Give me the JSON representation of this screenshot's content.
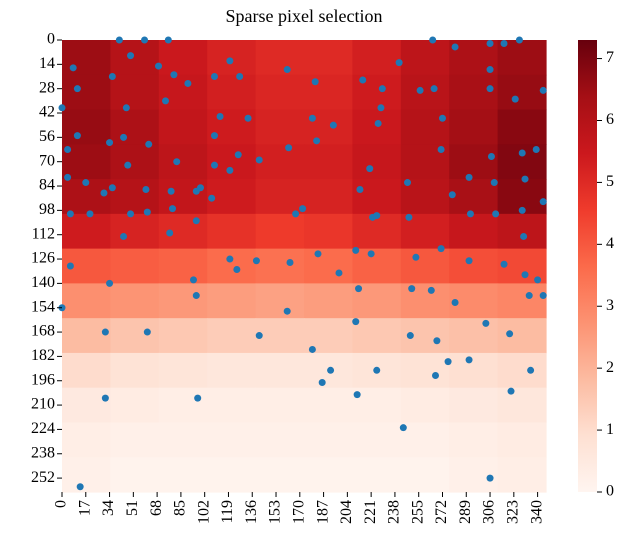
{
  "chart_data": {
    "type": "heatmap",
    "title": "Sparse pixel selection",
    "colormap": "Reds",
    "xlim": [
      0,
      346
    ],
    "ylim": [
      0,
      260
    ],
    "y_inverted": true,
    "xticks": [
      0,
      17,
      34,
      51,
      68,
      85,
      102,
      119,
      136,
      153,
      170,
      187,
      204,
      221,
      238,
      255,
      272,
      289,
      306,
      323,
      340
    ],
    "yticks": [
      0,
      14,
      28,
      42,
      56,
      70,
      84,
      98,
      112,
      126,
      140,
      154,
      168,
      182,
      196,
      210,
      224,
      238,
      252
    ],
    "clim": [
      0,
      7.3
    ],
    "colorbar_ticks": [
      0,
      1,
      2,
      3,
      4,
      5,
      6,
      7
    ],
    "z": [
      [
        6.5,
        6,
        5.5,
        5.2,
        5,
        5,
        5.3,
        5.8,
        6.2,
        6.5
      ],
      [
        6.5,
        6,
        5.6,
        5.3,
        5.1,
        5.1,
        5.4,
        5.9,
        6.3,
        6.6
      ],
      [
        6.6,
        6.2,
        5.7,
        5.4,
        5.2,
        5.2,
        5.5,
        6,
        6.4,
        6.8
      ],
      [
        6.5,
        6.2,
        5.8,
        5.5,
        5.3,
        5.3,
        5.6,
        6,
        6.5,
        6.9
      ],
      [
        6.2,
        6,
        5.7,
        5.4,
        5.2,
        5.2,
        5.5,
        5.9,
        6.3,
        6.8
      ],
      [
        5.4,
        5.2,
        5,
        4.8,
        4.6,
        4.7,
        5,
        5.3,
        5.6,
        5.8
      ],
      [
        4,
        3.9,
        3.8,
        3.6,
        3.5,
        3.6,
        3.8,
        4,
        4.2,
        4.3
      ],
      [
        2.8,
        2.7,
        2.6,
        2.5,
        2.4,
        2.5,
        2.6,
        2.8,
        2.9,
        3
      ],
      [
        1.8,
        1.6,
        1.5,
        1.4,
        1.4,
        1.4,
        1.5,
        1.6,
        1.7,
        1.8
      ],
      [
        1,
        0.8,
        0.7,
        0.6,
        0.6,
        0.6,
        0.7,
        0.8,
        0.9,
        1
      ],
      [
        0.5,
        0.4,
        0.3,
        0.3,
        0.3,
        0.3,
        0.3,
        0.4,
        0.5,
        0.6
      ],
      [
        0.3,
        0.2,
        0.2,
        0.2,
        0.2,
        0.2,
        0.2,
        0.2,
        0.3,
        0.4
      ],
      [
        0.2,
        0.1,
        0.1,
        0.1,
        0.1,
        0.1,
        0.1,
        0.1,
        0.2,
        0.3
      ]
    ],
    "points": {
      "color": "#1f77b4",
      "x": [
        41,
        59,
        76,
        265,
        316,
        327,
        306,
        281,
        8,
        49,
        11,
        36,
        69,
        90,
        80,
        120,
        109,
        127,
        161,
        181,
        241,
        215,
        229,
        256,
        266,
        306,
        306,
        324,
        344,
        272,
        228,
        133,
        109,
        74,
        46,
        0,
        4,
        11,
        34,
        44,
        62,
        113,
        126,
        141,
        162,
        182,
        179,
        226,
        194,
        271,
        291,
        309,
        329,
        331,
        339,
        307,
        17,
        30,
        36,
        47,
        60,
        78,
        96,
        107,
        120,
        82,
        4,
        6,
        20,
        49,
        61,
        79,
        99,
        109,
        172,
        167,
        213,
        220,
        222,
        247,
        279,
        292,
        310,
        329,
        344,
        248,
        330,
        225,
        6,
        44,
        77,
        96,
        120,
        139,
        183,
        210,
        221,
        253,
        271,
        291,
        316,
        331,
        340,
        125,
        163,
        94,
        34,
        198,
        212,
        250,
        264,
        281,
        334,
        344,
        303,
        320,
        0,
        31,
        61,
        96,
        141,
        161,
        210,
        179,
        192,
        186,
        225,
        249,
        268,
        276,
        291,
        267,
        335,
        321,
        31,
        97,
        211,
        244,
        306,
        13
      ],
      "y": [
        0,
        0,
        0,
        0,
        2,
        0,
        2,
        4,
        16,
        9,
        28,
        21,
        15,
        25,
        20,
        12,
        21,
        21,
        17,
        24,
        13,
        23,
        28,
        29,
        28,
        17,
        28,
        34,
        29,
        45,
        39,
        45,
        55,
        35,
        39,
        39,
        63,
        55,
        59,
        56,
        60,
        44,
        66,
        69,
        62,
        58,
        45,
        48,
        49,
        63,
        79,
        82,
        65,
        80,
        63,
        67,
        82,
        88,
        85,
        72,
        86,
        87,
        87,
        91,
        75,
        70,
        79,
        100,
        100,
        100,
        99,
        97,
        85,
        72,
        97,
        100,
        86,
        74,
        102,
        82,
        89,
        100,
        100,
        98,
        93,
        102,
        113,
        101,
        130,
        113,
        111,
        104,
        126,
        127,
        123,
        121,
        123,
        125,
        120,
        127,
        129,
        135,
        138,
        132,
        128,
        138,
        140,
        134,
        143,
        143,
        144,
        151,
        147,
        147,
        163,
        169,
        154,
        168,
        168,
        147,
        170,
        156,
        162,
        178,
        190,
        197,
        190,
        170,
        173,
        185,
        184,
        193,
        190,
        202,
        206,
        206,
        204,
        223,
        252,
        257
      ]
    }
  }
}
